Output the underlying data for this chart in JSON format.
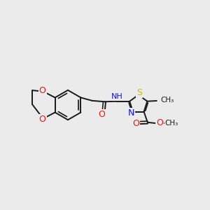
{
  "background_color": "#ebebeb",
  "bond_color": "#1a1a1a",
  "bond_width": 1.4,
  "atom_colors": {
    "C": "#1a1a1a",
    "H": "#4a9a9a",
    "N": "#1010ff",
    "O": "#ff1010",
    "S": "#ccbb00"
  },
  "font_size": 8,
  "fig_size": [
    3.0,
    3.0
  ],
  "dpi": 100,
  "xlim": [
    0,
    10
  ],
  "ylim": [
    2,
    8
  ]
}
